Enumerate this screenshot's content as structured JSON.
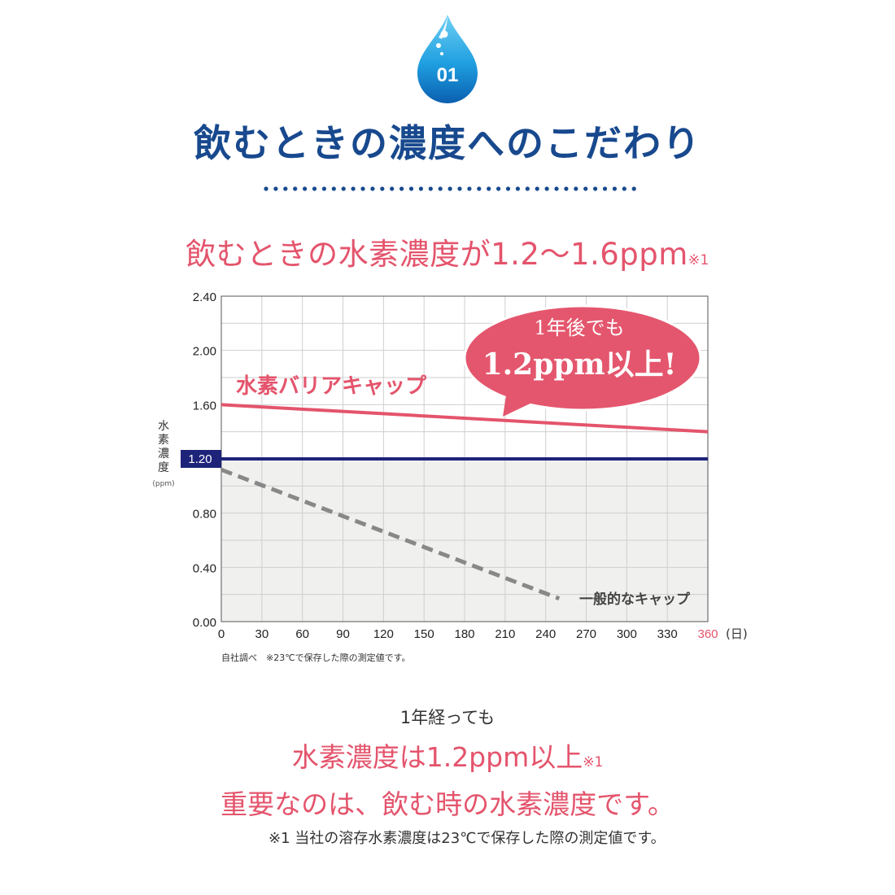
{
  "badge": {
    "number": "01"
  },
  "heading": "飲むときの濃度へのこだわり",
  "subtitle": {
    "text": "飲むときの水素濃度が1.2〜1.6ppm",
    "note": "※1"
  },
  "chart_data": {
    "type": "line",
    "ylabel": "水素濃度",
    "yunit": "(ppm)",
    "xunit": "(日)",
    "x_ticks": [
      "0",
      "30",
      "60",
      "90",
      "120",
      "150",
      "180",
      "210",
      "240",
      "270",
      "300",
      "330",
      "360"
    ],
    "y_ticks": [
      "2.40",
      "2.00",
      "1.60",
      "0.80",
      "0.40",
      "0.00"
    ],
    "y_highlight_tick": "1.20",
    "xlim": [
      0,
      360
    ],
    "ylim": [
      0,
      2.4
    ],
    "threshold": 1.2,
    "grid": true,
    "series": [
      {
        "name": "水素バリアキャップ",
        "x": [
          0,
          360
        ],
        "y": [
          1.6,
          1.4
        ],
        "color": "#e4546c",
        "style": "solid"
      },
      {
        "name": "一般的なキャップ",
        "x": [
          0,
          250
        ],
        "y": [
          1.12,
          0.17
        ],
        "color": "#888888",
        "style": "dashed"
      }
    ],
    "callout": {
      "line1": "1年後でも",
      "line2": "1.2ppm以上!"
    },
    "source_note": "自社調べ　※23℃で保存した際の測定値です。",
    "colors": {
      "threshold": "#1e237a",
      "below_fill": "#f0f0ee",
      "callout": "#e4566d",
      "highlight_tick": "#e4546c"
    }
  },
  "bottom": {
    "line1": "1年経っても",
    "line2": "水素濃度は1.2ppm以上",
    "line2_note": "※1",
    "line3": "重要なのは、飲む時の水素濃度です。"
  },
  "footnote": "※1 当社の溶存水素濃度は23℃で保存した際の測定値です。"
}
